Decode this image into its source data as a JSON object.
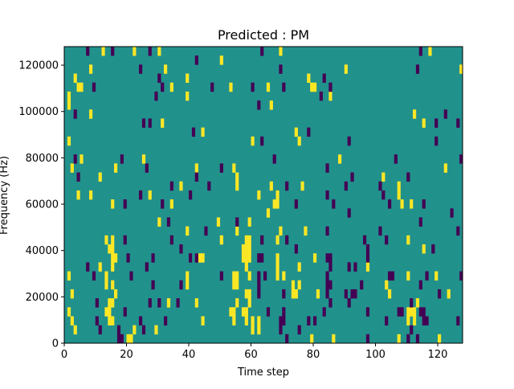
{
  "chart_data": {
    "type": "heatmap",
    "title": "Predicted : PM",
    "xlabel": "Time step",
    "ylabel": "Frequency (Hz)",
    "xlim": [
      0,
      128
    ],
    "ylim": [
      0,
      128000
    ],
    "n_time_steps": 128,
    "n_freq_bins": 33,
    "xticks": [
      0,
      20,
      40,
      60,
      80,
      100,
      120
    ],
    "yticks": [
      0,
      20000,
      40000,
      60000,
      80000,
      100000,
      120000
    ],
    "grid": false,
    "colormap": {
      "low": "#440154",
      "mid": "#21918c",
      "high": "#fde725"
    },
    "background_value": 0,
    "cells_note_values": {
      "high": 1,
      "low": -1
    },
    "high_cells_by_bin": {
      "32": [
        12,
        22,
        30,
        69,
        117
      ],
      "31": [
        50
      ],
      "30": [
        8,
        32,
        90,
        127
      ],
      "29": [
        3,
        39,
        78
      ],
      "28": [
        4,
        5,
        34,
        53,
        65,
        79,
        80
      ],
      "27": [
        1,
        39,
        85
      ],
      "26": [
        1,
        66
      ],
      "25": [
        8,
        112
      ],
      "24": [
        31,
        115
      ],
      "23": [
        44,
        74
      ],
      "22": [
        1,
        60,
        75
      ],
      "21": [],
      "20": [
        5,
        25,
        88
      ],
      "19": [
        2,
        16,
        42,
        54,
        122
      ],
      "18": [
        11,
        55,
        102
      ],
      "17": [
        37,
        55,
        66,
        76,
        107
      ],
      "16": [
        4,
        8,
        27,
        62,
        68,
        107
      ],
      "15": [
        15,
        34,
        67,
        68,
        108,
        111
      ],
      "14": [
        65
      ],
      "13": [
        30,
        49,
        59
      ],
      "12": [
        39,
        55,
        69,
        77
      ],
      "11": [
        13,
        15,
        50,
        58,
        59,
        68,
        110
      ],
      "10": [
        14,
        15,
        57,
        58,
        59,
        115
      ],
      "9": [
        15,
        16,
        43,
        44,
        57,
        58,
        59,
        68,
        80
      ],
      "8": [
        11,
        15,
        58,
        68,
        75,
        97
      ],
      "7": [
        1,
        13,
        39,
        54,
        55,
        59,
        68,
        70,
        110,
        119
      ],
      "6": [
        13,
        15,
        39,
        54,
        55,
        73,
        75,
        103
      ],
      "5": [
        2,
        16,
        58,
        59,
        73,
        74,
        81,
        104,
        123
      ],
      "4": [
        14,
        15,
        33,
        42,
        55,
        59,
        113
      ],
      "3": [
        1,
        13,
        14,
        53,
        54,
        57,
        58,
        110,
        111,
        112
      ],
      "2": [
        2,
        14,
        15,
        44,
        54,
        58,
        60,
        62,
        110,
        112
      ],
      "1": [
        3,
        22,
        29,
        60,
        62
      ],
      "0": [
        20,
        21,
        79,
        86,
        107,
        120
      ]
    },
    "low_cells_by_bin": {
      "32": [
        7,
        15,
        27,
        63,
        114
      ],
      "31": [
        42
      ],
      "30": [
        24,
        69,
        113
      ],
      "29": [
        30,
        83
      ],
      "28": [
        9,
        31,
        47,
        60,
        70,
        85
      ],
      "27": [
        29,
        82
      ],
      "26": [
        62
      ],
      "25": [
        3,
        122
      ],
      "24": [
        25,
        27,
        119,
        126
      ],
      "23": [
        41,
        78
      ],
      "22": [
        63,
        91,
        119
      ],
      "21": [],
      "20": [
        3,
        18,
        67,
        106,
        127
      ],
      "19": [
        26,
        50,
        84
      ],
      "18": [
        4,
        42,
        92,
        110
      ],
      "17": [
        34,
        46,
        71,
        90,
        101
      ],
      "16": [
        24,
        40,
        84,
        102
      ],
      "15": [
        19,
        31,
        74,
        86,
        104,
        115
      ],
      "14": [
        91,
        124
      ],
      "13": [
        33,
        55,
        114
      ],
      "12": [
        45,
        84,
        101,
        126
      ],
      "11": [
        19,
        34,
        63,
        71,
        96,
        103
      ],
      "10": [
        37,
        74,
        97,
        118
      ],
      "9": [
        20,
        28,
        40,
        42,
        62,
        63,
        84,
        85,
        97
      ],
      "8": [
        7,
        26,
        85,
        91,
        93
      ],
      "7": [
        9,
        21,
        50,
        62,
        64,
        84,
        104,
        105,
        116,
        127
      ],
      "6": [
        28,
        37,
        62,
        84,
        85,
        95,
        114
      ],
      "5": [
        62,
        70,
        84,
        90,
        92,
        93,
        120
      ],
      "4": [
        10,
        27,
        30,
        36,
        85,
        91,
        111
      ],
      "3": [
        19,
        65,
        70,
        83,
        97,
        107,
        108,
        114,
        115
      ],
      "2": [
        10,
        24,
        32,
        69,
        70,
        78,
        80,
        103,
        115,
        116,
        126
      ],
      "1": [
        11,
        17,
        25,
        69,
        75,
        111
      ],
      "0": [
        17,
        18,
        71,
        97,
        110,
        113
      ]
    }
  }
}
